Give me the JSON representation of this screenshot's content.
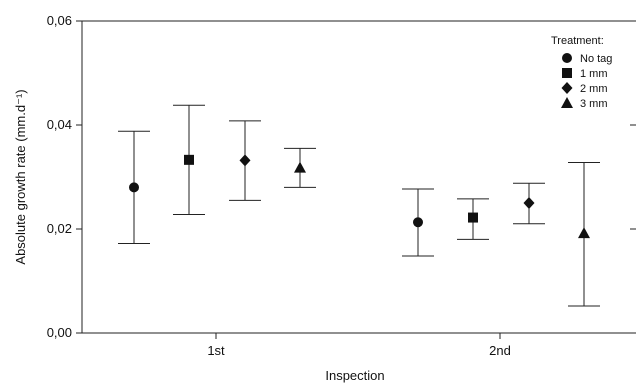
{
  "chart_data": {
    "type": "scatter",
    "xlabel": "Inspection",
    "ylabel": "Absolute growth rate (mm.d⁻¹)",
    "categories": [
      "1st",
      "2nd"
    ],
    "ylim": [
      0,
      0.06
    ],
    "yticks": [
      "0,00",
      "0,02",
      "0,04",
      "0,06"
    ],
    "grid": false,
    "legend": {
      "title": "Treatment:",
      "placement": "top-right"
    },
    "series": [
      {
        "name": "No tag",
        "marker": "circle",
        "values": [
          0.028,
          0.0213
        ],
        "error_low": [
          0.0172,
          0.0148
        ],
        "error_high": [
          0.0388,
          0.0277
        ]
      },
      {
        "name": "1 mm",
        "marker": "square",
        "values": [
          0.0333,
          0.0222
        ],
        "error_low": [
          0.0228,
          0.018
        ],
        "error_high": [
          0.0438,
          0.0258
        ]
      },
      {
        "name": "2 mm",
        "marker": "diamond",
        "values": [
          0.0332,
          0.025
        ],
        "error_low": [
          0.0255,
          0.021
        ],
        "error_high": [
          0.0408,
          0.0288
        ]
      },
      {
        "name": "3 mm",
        "marker": "triangle",
        "values": [
          0.0318,
          0.0192
        ],
        "error_low": [
          0.028,
          0.0052
        ],
        "error_high": [
          0.0355,
          0.0328
        ]
      }
    ]
  }
}
